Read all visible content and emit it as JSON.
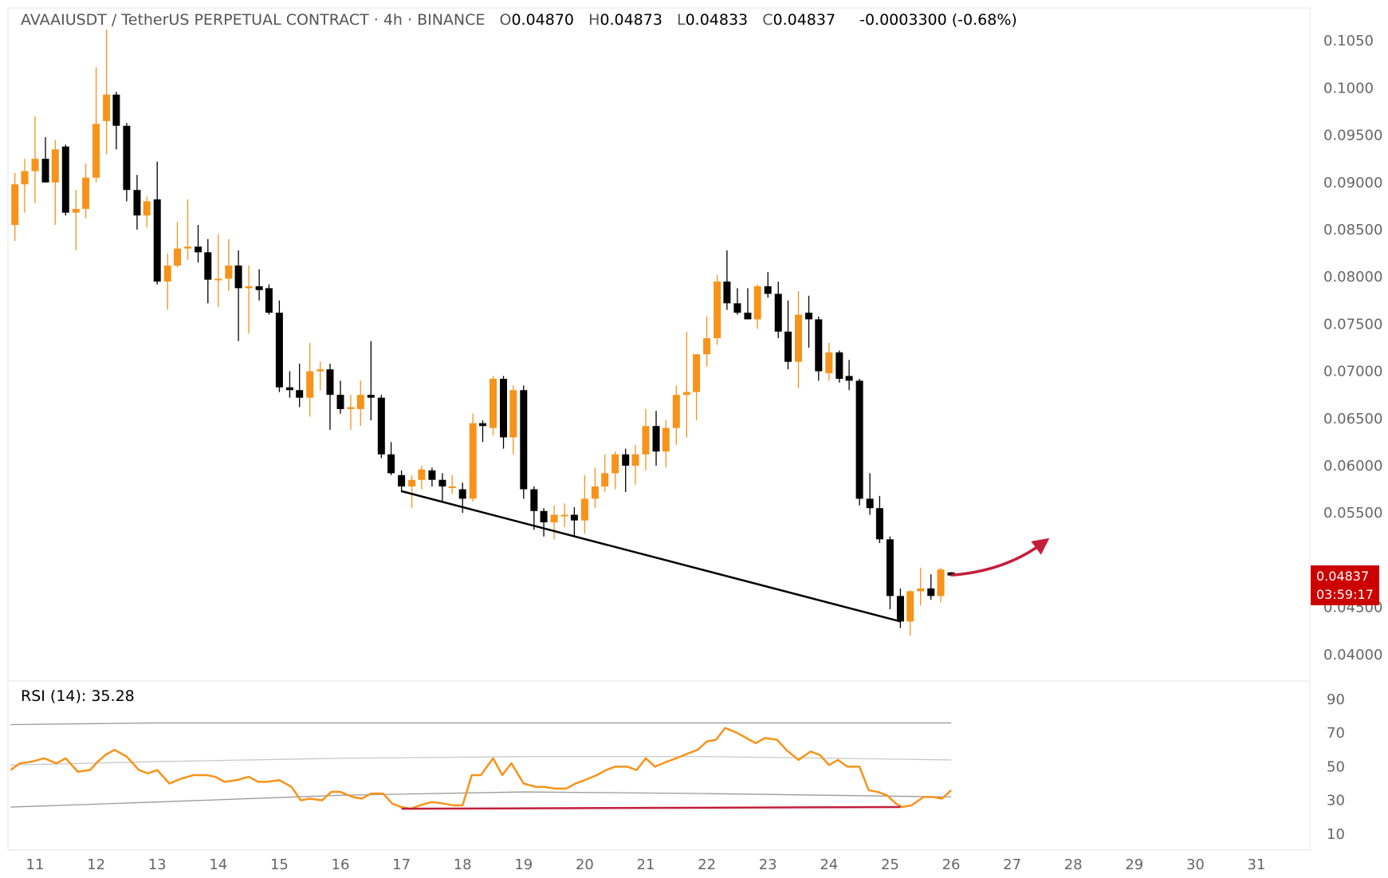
{
  "header": {
    "title": "AVAAIUSDT / TetherUS PERPETUAL CONTRACT · 4h · BINANCE",
    "o_label": "O",
    "o": "0.04870",
    "h_label": "H",
    "h": "0.04873",
    "l_label": "L",
    "l": "0.04833",
    "c_label": "C",
    "c": "0.04837",
    "change": "-0.0003300 (-0.68%)"
  },
  "price_badge": {
    "price": "0.04837",
    "countdown": "03:59:17"
  },
  "rsi": {
    "label": "RSI (14): 35.28"
  },
  "colors": {
    "up": "#f7931a",
    "down": "#000000",
    "rsi_line": "#f7931a",
    "divergence": "#c41e3a",
    "badge": "#cc0000"
  },
  "chart_data": [
    {
      "type": "candlestick",
      "title": "AVAAIUSDT / TetherUS PERPETUAL CONTRACT · 4h · BINANCE",
      "x_ticks": [
        "11",
        "12",
        "13",
        "14",
        "15",
        "16",
        "17",
        "18",
        "19",
        "20",
        "21",
        "22",
        "23",
        "24",
        "25",
        "26",
        "27",
        "28",
        "29",
        "30",
        "31"
      ],
      "x_range": [
        10.6,
        31.9
      ],
      "y_ticks": [
        "0.1050",
        "0.1000",
        "0.09500",
        "0.09000",
        "0.08500",
        "0.08000",
        "0.07500",
        "0.07000",
        "0.06500",
        "0.06000",
        "0.05500",
        "0.04500",
        "0.04000"
      ],
      "ylim": [
        0.0395,
        0.108
      ],
      "candles": [
        {
          "x": 10.67,
          "o": 0.0855,
          "h": 0.091,
          "l": 0.0838,
          "c": 0.0898
        },
        {
          "x": 10.83,
          "o": 0.0898,
          "h": 0.0925,
          "l": 0.0868,
          "c": 0.0912
        },
        {
          "x": 11.0,
          "o": 0.0912,
          "h": 0.097,
          "l": 0.0878,
          "c": 0.0925
        },
        {
          "x": 11.17,
          "o": 0.0925,
          "h": 0.0948,
          "l": 0.09,
          "c": 0.09
        },
        {
          "x": 11.33,
          "o": 0.09,
          "h": 0.0945,
          "l": 0.0855,
          "c": 0.0935
        },
        {
          "x": 11.5,
          "o": 0.0938,
          "h": 0.094,
          "l": 0.0865,
          "c": 0.0868
        },
        {
          "x": 11.67,
          "o": 0.0868,
          "h": 0.0892,
          "l": 0.0828,
          "c": 0.0872
        },
        {
          "x": 11.83,
          "o": 0.0872,
          "h": 0.092,
          "l": 0.0862,
          "c": 0.0905
        },
        {
          "x": 12.0,
          "o": 0.0905,
          "h": 0.1022,
          "l": 0.09,
          "c": 0.0962
        },
        {
          "x": 12.17,
          "o": 0.0965,
          "h": 0.1062,
          "l": 0.093,
          "c": 0.0993
        },
        {
          "x": 12.33,
          "o": 0.0993,
          "h": 0.0996,
          "l": 0.0935,
          "c": 0.096
        },
        {
          "x": 12.5,
          "o": 0.096,
          "h": 0.0963,
          "l": 0.088,
          "c": 0.0892
        },
        {
          "x": 12.67,
          "o": 0.0892,
          "h": 0.0908,
          "l": 0.085,
          "c": 0.0865
        },
        {
          "x": 12.83,
          "o": 0.0865,
          "h": 0.0885,
          "l": 0.0852,
          "c": 0.088
        },
        {
          "x": 13.0,
          "o": 0.0882,
          "h": 0.0922,
          "l": 0.0792,
          "c": 0.0795
        },
        {
          "x": 13.17,
          "o": 0.0795,
          "h": 0.0825,
          "l": 0.0765,
          "c": 0.0812
        },
        {
          "x": 13.33,
          "o": 0.0812,
          "h": 0.0858,
          "l": 0.081,
          "c": 0.083
        },
        {
          "x": 13.5,
          "o": 0.083,
          "h": 0.0882,
          "l": 0.0818,
          "c": 0.0832
        },
        {
          "x": 13.67,
          "o": 0.0832,
          "h": 0.0855,
          "l": 0.0815,
          "c": 0.0826
        },
        {
          "x": 13.83,
          "o": 0.0826,
          "h": 0.084,
          "l": 0.0772,
          "c": 0.0797
        },
        {
          "x": 14.0,
          "o": 0.0797,
          "h": 0.0845,
          "l": 0.0768,
          "c": 0.0798
        },
        {
          "x": 14.17,
          "o": 0.0798,
          "h": 0.084,
          "l": 0.0785,
          "c": 0.0812
        },
        {
          "x": 14.33,
          "o": 0.0812,
          "h": 0.0828,
          "l": 0.0732,
          "c": 0.0788
        },
        {
          "x": 14.5,
          "o": 0.0788,
          "h": 0.0812,
          "l": 0.074,
          "c": 0.079
        },
        {
          "x": 14.67,
          "o": 0.079,
          "h": 0.0808,
          "l": 0.0775,
          "c": 0.0786
        },
        {
          "x": 14.83,
          "o": 0.0788,
          "h": 0.0792,
          "l": 0.076,
          "c": 0.0762
        },
        {
          "x": 15.0,
          "o": 0.0762,
          "h": 0.0775,
          "l": 0.0678,
          "c": 0.0683
        },
        {
          "x": 15.17,
          "o": 0.0683,
          "h": 0.07,
          "l": 0.0672,
          "c": 0.068
        },
        {
          "x": 15.33,
          "o": 0.068,
          "h": 0.0708,
          "l": 0.0662,
          "c": 0.0672
        },
        {
          "x": 15.5,
          "o": 0.0672,
          "h": 0.073,
          "l": 0.0652,
          "c": 0.07
        },
        {
          "x": 15.67,
          "o": 0.07,
          "h": 0.071,
          "l": 0.068,
          "c": 0.0702
        },
        {
          "x": 15.83,
          "o": 0.0702,
          "h": 0.0708,
          "l": 0.0638,
          "c": 0.0675
        },
        {
          "x": 16.0,
          "o": 0.0675,
          "h": 0.069,
          "l": 0.0655,
          "c": 0.066
        },
        {
          "x": 16.17,
          "o": 0.066,
          "h": 0.0675,
          "l": 0.0638,
          "c": 0.0662
        },
        {
          "x": 16.33,
          "o": 0.066,
          "h": 0.069,
          "l": 0.0642,
          "c": 0.0675
        },
        {
          "x": 16.5,
          "o": 0.0675,
          "h": 0.0732,
          "l": 0.0648,
          "c": 0.0672
        },
        {
          "x": 16.67,
          "o": 0.0672,
          "h": 0.0675,
          "l": 0.0608,
          "c": 0.0612
        },
        {
          "x": 16.83,
          "o": 0.0612,
          "h": 0.0625,
          "l": 0.059,
          "c": 0.0592
        },
        {
          "x": 17.0,
          "o": 0.059,
          "h": 0.0595,
          "l": 0.0572,
          "c": 0.0578
        },
        {
          "x": 17.17,
          "o": 0.0578,
          "h": 0.059,
          "l": 0.0555,
          "c": 0.0585
        },
        {
          "x": 17.33,
          "o": 0.0585,
          "h": 0.06,
          "l": 0.0575,
          "c": 0.0596
        },
        {
          "x": 17.5,
          "o": 0.0595,
          "h": 0.0598,
          "l": 0.0578,
          "c": 0.0585
        },
        {
          "x": 17.67,
          "o": 0.0585,
          "h": 0.0592,
          "l": 0.0562,
          "c": 0.0578
        },
        {
          "x": 17.83,
          "o": 0.0578,
          "h": 0.059,
          "l": 0.057,
          "c": 0.0578
        },
        {
          "x": 18.0,
          "o": 0.0575,
          "h": 0.0582,
          "l": 0.055,
          "c": 0.0565
        },
        {
          "x": 18.17,
          "o": 0.0565,
          "h": 0.0655,
          "l": 0.0562,
          "c": 0.0645
        },
        {
          "x": 18.33,
          "o": 0.0645,
          "h": 0.0648,
          "l": 0.0625,
          "c": 0.0642
        },
        {
          "x": 18.5,
          "o": 0.064,
          "h": 0.0695,
          "l": 0.0632,
          "c": 0.0692
        },
        {
          "x": 18.67,
          "o": 0.0692,
          "h": 0.0695,
          "l": 0.0618,
          "c": 0.063
        },
        {
          "x": 18.83,
          "o": 0.063,
          "h": 0.0685,
          "l": 0.0612,
          "c": 0.068
        },
        {
          "x": 19.0,
          "o": 0.068,
          "h": 0.0685,
          "l": 0.0565,
          "c": 0.0575
        },
        {
          "x": 19.17,
          "o": 0.0575,
          "h": 0.0578,
          "l": 0.0532,
          "c": 0.0552
        },
        {
          "x": 19.33,
          "o": 0.0552,
          "h": 0.0555,
          "l": 0.0525,
          "c": 0.054
        },
        {
          "x": 19.5,
          "o": 0.054,
          "h": 0.0558,
          "l": 0.0522,
          "c": 0.0548
        },
        {
          "x": 19.67,
          "o": 0.0548,
          "h": 0.056,
          "l": 0.0535,
          "c": 0.0548
        },
        {
          "x": 19.83,
          "o": 0.0548,
          "h": 0.0556,
          "l": 0.0525,
          "c": 0.0542
        },
        {
          "x": 20.0,
          "o": 0.0542,
          "h": 0.059,
          "l": 0.0528,
          "c": 0.0565
        },
        {
          "x": 20.17,
          "o": 0.0565,
          "h": 0.0598,
          "l": 0.0555,
          "c": 0.0578
        },
        {
          "x": 20.33,
          "o": 0.0578,
          "h": 0.0612,
          "l": 0.0572,
          "c": 0.0592
        },
        {
          "x": 20.5,
          "o": 0.0592,
          "h": 0.0615,
          "l": 0.0575,
          "c": 0.0612
        },
        {
          "x": 20.67,
          "o": 0.0612,
          "h": 0.0618,
          "l": 0.0572,
          "c": 0.06
        },
        {
          "x": 20.83,
          "o": 0.06,
          "h": 0.0622,
          "l": 0.058,
          "c": 0.0612
        },
        {
          "x": 21.0,
          "o": 0.0612,
          "h": 0.066,
          "l": 0.0595,
          "c": 0.0642
        },
        {
          "x": 21.17,
          "o": 0.0642,
          "h": 0.0658,
          "l": 0.06,
          "c": 0.0615
        },
        {
          "x": 21.33,
          "o": 0.0615,
          "h": 0.0648,
          "l": 0.0598,
          "c": 0.064
        },
        {
          "x": 21.5,
          "o": 0.064,
          "h": 0.0685,
          "l": 0.0622,
          "c": 0.0675
        },
        {
          "x": 21.67,
          "o": 0.0675,
          "h": 0.0742,
          "l": 0.063,
          "c": 0.0678
        },
        {
          "x": 21.83,
          "o": 0.0678,
          "h": 0.0718,
          "l": 0.0648,
          "c": 0.0718
        },
        {
          "x": 22.0,
          "o": 0.0718,
          "h": 0.0758,
          "l": 0.0705,
          "c": 0.0735
        },
        {
          "x": 22.17,
          "o": 0.0735,
          "h": 0.0802,
          "l": 0.0728,
          "c": 0.0795
        },
        {
          "x": 22.33,
          "o": 0.0795,
          "h": 0.0828,
          "l": 0.0765,
          "c": 0.0772
        },
        {
          "x": 22.5,
          "o": 0.0772,
          "h": 0.0788,
          "l": 0.076,
          "c": 0.0762
        },
        {
          "x": 22.67,
          "o": 0.0762,
          "h": 0.0788,
          "l": 0.0755,
          "c": 0.0755
        },
        {
          "x": 22.83,
          "o": 0.0755,
          "h": 0.0792,
          "l": 0.0745,
          "c": 0.079
        },
        {
          "x": 23.0,
          "o": 0.079,
          "h": 0.0805,
          "l": 0.0778,
          "c": 0.0782
        },
        {
          "x": 23.17,
          "o": 0.0782,
          "h": 0.0795,
          "l": 0.0735,
          "c": 0.0742
        },
        {
          "x": 23.33,
          "o": 0.0742,
          "h": 0.0775,
          "l": 0.0702,
          "c": 0.071
        },
        {
          "x": 23.5,
          "o": 0.071,
          "h": 0.0785,
          "l": 0.0682,
          "c": 0.076
        },
        {
          "x": 23.67,
          "o": 0.0762,
          "h": 0.078,
          "l": 0.0725,
          "c": 0.0755
        },
        {
          "x": 23.83,
          "o": 0.0755,
          "h": 0.0758,
          "l": 0.069,
          "c": 0.07
        },
        {
          "x": 24.0,
          "o": 0.0698,
          "h": 0.073,
          "l": 0.069,
          "c": 0.072
        },
        {
          "x": 24.17,
          "o": 0.072,
          "h": 0.0722,
          "l": 0.0688,
          "c": 0.0692
        },
        {
          "x": 24.33,
          "o": 0.0695,
          "h": 0.0712,
          "l": 0.068,
          "c": 0.069
        },
        {
          "x": 24.5,
          "o": 0.069,
          "h": 0.0692,
          "l": 0.0558,
          "c": 0.0565
        },
        {
          "x": 24.67,
          "o": 0.0565,
          "h": 0.0592,
          "l": 0.0548,
          "c": 0.0555
        },
        {
          "x": 24.83,
          "o": 0.0555,
          "h": 0.0568,
          "l": 0.0518,
          "c": 0.0522
        },
        {
          "x": 25.0,
          "o": 0.0522,
          "h": 0.0525,
          "l": 0.0448,
          "c": 0.0462
        },
        {
          "x": 25.17,
          "o": 0.0462,
          "h": 0.047,
          "l": 0.0428,
          "c": 0.0435
        },
        {
          "x": 25.33,
          "o": 0.0435,
          "h": 0.0468,
          "l": 0.042,
          "c": 0.0467
        },
        {
          "x": 25.5,
          "o": 0.0467,
          "h": 0.0492,
          "l": 0.0452,
          "c": 0.047
        },
        {
          "x": 25.67,
          "o": 0.047,
          "h": 0.0485,
          "l": 0.0458,
          "c": 0.0462
        },
        {
          "x": 25.83,
          "o": 0.0462,
          "h": 0.0492,
          "l": 0.0455,
          "c": 0.049
        },
        {
          "x": 26.0,
          "o": 0.0487,
          "h": 0.04873,
          "l": 0.04833,
          "c": 0.04837
        }
      ],
      "annotations": [
        {
          "type": "trendline",
          "color": "#000000",
          "from": {
            "x": 17.0,
            "y": 0.0573
          },
          "to": {
            "x": 25.17,
            "y": 0.0435
          }
        },
        {
          "type": "arrow",
          "color": "#c41e3a",
          "from": {
            "x": 26.0,
            "y": 0.0484
          },
          "to": {
            "x": 27.5,
            "y": 0.0518
          }
        }
      ]
    },
    {
      "type": "line",
      "title": "RSI (14): 35.28",
      "y_ticks": [
        "90",
        "70",
        "50",
        "30",
        "10"
      ],
      "ylim": [
        3,
        100
      ],
      "x": [
        10.6,
        10.75,
        10.95,
        11.15,
        11.35,
        11.5,
        11.7,
        11.9,
        12.0,
        12.15,
        12.3,
        12.5,
        12.7,
        12.85,
        13.0,
        13.2,
        13.4,
        13.6,
        13.8,
        13.95,
        14.1,
        14.3,
        14.5,
        14.65,
        14.8,
        15.0,
        15.2,
        15.35,
        15.5,
        15.7,
        15.85,
        16.0,
        16.2,
        16.35,
        16.5,
        16.7,
        16.85,
        17.0,
        17.15,
        17.3,
        17.5,
        17.7,
        17.85,
        18.0,
        18.15,
        18.3,
        18.5,
        18.65,
        18.8,
        19.0,
        19.2,
        19.35,
        19.5,
        19.7,
        19.85,
        20.0,
        20.2,
        20.35,
        20.5,
        20.7,
        20.85,
        21.0,
        21.15,
        21.35,
        21.5,
        21.7,
        21.85,
        22.0,
        22.15,
        22.3,
        22.5,
        22.65,
        22.8,
        22.95,
        23.15,
        23.3,
        23.5,
        23.7,
        23.85,
        24.0,
        24.15,
        24.3,
        24.5,
        24.65,
        24.8,
        24.95,
        25.1,
        25.2,
        25.35,
        25.55,
        25.7,
        25.85,
        26.0
      ],
      "series": [
        {
          "values": [
            48,
            52,
            53,
            55,
            52,
            55,
            47,
            48,
            52,
            57,
            60,
            56,
            48,
            46,
            48,
            40,
            43,
            45,
            45,
            44,
            41,
            42,
            44,
            41,
            41,
            42,
            38,
            30,
            31,
            30,
            35,
            35,
            32,
            31,
            34,
            34,
            28,
            26,
            25,
            27,
            29,
            28,
            27,
            27,
            45,
            45,
            55,
            45,
            52,
            40,
            38,
            38,
            37,
            37,
            40,
            42,
            45,
            48,
            50,
            50,
            48,
            55,
            50,
            53,
            55,
            58,
            60,
            65,
            66,
            73,
            70,
            67,
            64,
            67,
            66,
            60,
            54,
            59,
            57,
            51,
            54,
            50,
            50,
            36,
            35,
            33,
            28,
            26,
            27,
            32,
            32,
            31,
            36
          ]
        },
        {
          "values": [
            75,
            76,
            76,
            76,
            76,
            76
          ],
          "x": [
            10.6,
            13,
            16,
            19,
            22,
            26
          ]
        },
        {
          "values": [
            51,
            53,
            55,
            56,
            56,
            54
          ],
          "x": [
            10.6,
            13,
            16,
            19,
            22,
            26
          ]
        },
        {
          "values": [
            26,
            29,
            33,
            35,
            34,
            32
          ],
          "x": [
            10.6,
            13,
            16,
            19,
            22,
            26
          ]
        }
      ],
      "annotations": [
        {
          "type": "trendline",
          "color": "#c41e3a",
          "from": {
            "x": 17.0,
            "y": 25
          },
          "to": {
            "x": 25.17,
            "y": 26
          }
        }
      ]
    }
  ]
}
